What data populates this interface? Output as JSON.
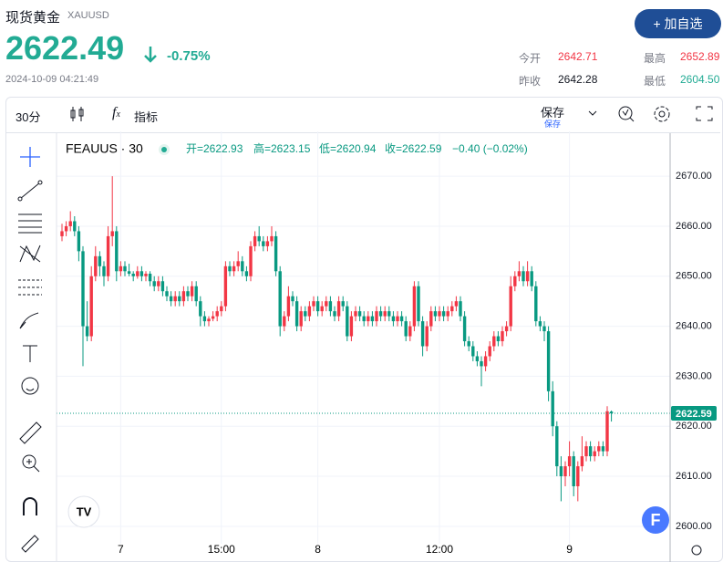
{
  "header": {
    "title": "现货黄金",
    "symbol": "XAUUSD",
    "price": "2622.49",
    "change": "-0.75%",
    "time": "2024-10-09 04:21:49",
    "button": "+ 加自选",
    "stats": [
      {
        "label": "今开",
        "value": "2642.71"
      },
      {
        "label": "最高",
        "value": "2652.89"
      },
      {
        "label": "昨收",
        "value": "2642.28"
      },
      {
        "label": "最低",
        "value": "2604.50"
      }
    ]
  },
  "toolbar": {
    "interval": "30分",
    "indicators": "指标",
    "save": "保存",
    "save_sub": "保存"
  },
  "chart_data": {
    "type": "candlestick",
    "legend": {
      "symbol": "FEAUUS · 30",
      "open": "开=2622.93",
      "high": "高=2623.15",
      "low": "低=2620.94",
      "close": "收=2622.59",
      "change": "−0.40 (−0.02%)"
    },
    "up_color": "#f23645",
    "down_color": "#089981",
    "grid": true,
    "ylim": [
      2597.6,
      2678.6
    ],
    "yticks": [
      {
        "value": 2600,
        "label": "2600.00"
      },
      {
        "value": 2610,
        "label": "2610.00"
      },
      {
        "value": 2620,
        "label": "2620.00"
      },
      {
        "value": 2630,
        "label": "2630.00"
      },
      {
        "value": 2640,
        "label": "2640.00"
      },
      {
        "value": 2650,
        "label": "2650.00"
      },
      {
        "value": 2660,
        "label": "2660.00"
      },
      {
        "value": 2670,
        "label": "2670.00"
      }
    ],
    "x": [
      null,
      null,
      null,
      null,
      null,
      null,
      null,
      null,
      null,
      null,
      null,
      null,
      null,
      null,
      "7",
      null,
      null,
      null,
      null,
      null,
      null,
      null,
      null,
      null,
      null,
      null,
      null,
      null,
      null,
      null,
      null,
      null,
      null,
      null,
      null,
      null,
      null,
      null,
      "15:00",
      null,
      null,
      null,
      null,
      null,
      null,
      null,
      null,
      null,
      null,
      null,
      null,
      null,
      null,
      null,
      null,
      null,
      null,
      null,
      null,
      null,
      null,
      "8",
      null,
      null,
      null,
      null,
      null,
      null,
      null,
      null,
      null,
      null,
      null,
      null,
      null,
      null,
      null,
      null,
      null,
      null,
      null,
      null,
      null,
      null,
      null,
      null,
      null,
      null,
      null,
      null,
      "12:00",
      null,
      null,
      null,
      null,
      null,
      null,
      null,
      null,
      null,
      null,
      null,
      null,
      null,
      null,
      null,
      null,
      null,
      null,
      null,
      null,
      null,
      null,
      null,
      null,
      null,
      null,
      null,
      null,
      null,
      null,
      "9",
      null,
      null,
      null,
      null,
      null,
      null,
      null,
      null,
      null,
      null
    ],
    "candles": [
      [
        2658,
        2660.5,
        2657,
        2659
      ],
      [
        2659,
        2661,
        2658,
        2660
      ],
      [
        2660,
        2663,
        2659,
        2661
      ],
      [
        2661,
        2662,
        2658,
        2659
      ],
      [
        2659,
        2660,
        2653,
        2655
      ],
      [
        2655,
        2656,
        2632,
        2640
      ],
      [
        2640,
        2645,
        2637,
        2638
      ],
      [
        2638,
        2652,
        2637,
        2650
      ],
      [
        2650,
        2656,
        2649,
        2654
      ],
      [
        2654,
        2655,
        2650,
        2652
      ],
      [
        2652,
        2653,
        2648,
        2650
      ],
      [
        2650,
        2660,
        2649,
        2658
      ],
      [
        2658,
        2670,
        2656,
        2659
      ],
      [
        2659,
        2660,
        2649,
        2651
      ],
      [
        2651,
        2653,
        2650,
        2652
      ],
      [
        2652,
        2653,
        2650,
        2651
      ],
      [
        2651,
        2652.5,
        2650,
        2650.5
      ],
      [
        2650.5,
        2651,
        2649,
        2650
      ],
      [
        2650,
        2652,
        2649.5,
        2651
      ],
      [
        2651,
        2652,
        2649,
        2650
      ],
      [
        2650,
        2651,
        2649,
        2650.5
      ],
      [
        2650.5,
        2651,
        2648,
        2649
      ],
      [
        2649,
        2650,
        2647,
        2648
      ],
      [
        2648,
        2650,
        2647,
        2649
      ],
      [
        2649,
        2650,
        2646,
        2647
      ],
      [
        2647,
        2648,
        2645,
        2646
      ],
      [
        2646,
        2647,
        2644,
        2645
      ],
      [
        2645,
        2647,
        2644,
        2646
      ],
      [
        2646,
        2647,
        2644,
        2645
      ],
      [
        2645,
        2648,
        2644,
        2647
      ],
      [
        2647,
        2648,
        2645,
        2646
      ],
      [
        2646,
        2649,
        2645,
        2648
      ],
      [
        2648,
        2649,
        2644,
        2645
      ],
      [
        2645,
        2646,
        2640,
        2642
      ],
      [
        2642,
        2643,
        2640,
        2641
      ],
      [
        2641,
        2642,
        2640,
        2641.5
      ],
      [
        2641.5,
        2643,
        2641,
        2642
      ],
      [
        2642,
        2644,
        2641,
        2643
      ],
      [
        2643,
        2645,
        2642,
        2644
      ],
      [
        2644,
        2653,
        2643,
        2652
      ],
      [
        2652,
        2653,
        2650,
        2651
      ],
      [
        2651,
        2653,
        2650,
        2652
      ],
      [
        2652,
        2655,
        2651,
        2653
      ],
      [
        2653,
        2654,
        2650,
        2651
      ],
      [
        2651,
        2652,
        2649,
        2650
      ],
      [
        2650,
        2657,
        2649,
        2656
      ],
      [
        2656,
        2659,
        2655,
        2658
      ],
      [
        2658,
        2660,
        2656,
        2657
      ],
      [
        2657,
        2658,
        2655,
        2656
      ],
      [
        2656,
        2658,
        2655,
        2657
      ],
      [
        2657,
        2660,
        2656,
        2658
      ],
      [
        2658,
        2659,
        2650,
        2651
      ],
      [
        2651,
        2652,
        2638,
        2640
      ],
      [
        2640,
        2643,
        2639,
        2642
      ],
      [
        2642,
        2648,
        2641,
        2646
      ],
      [
        2646,
        2647,
        2644,
        2645
      ],
      [
        2645,
        2646,
        2639,
        2640
      ],
      [
        2640,
        2644,
        2639,
        2643
      ],
      [
        2643,
        2644,
        2641,
        2642
      ],
      [
        2642,
        2645,
        2641,
        2644
      ],
      [
        2644,
        2646,
        2643,
        2645
      ],
      [
        2645,
        2646,
        2642,
        2643
      ],
      [
        2643,
        2645,
        2642,
        2644
      ],
      [
        2644,
        2646,
        2643,
        2645
      ],
      [
        2645,
        2646,
        2642,
        2643
      ],
      [
        2643,
        2644,
        2641,
        2642
      ],
      [
        2642,
        2646,
        2641,
        2645
      ],
      [
        2645,
        2646,
        2643,
        2644
      ],
      [
        2644,
        2645,
        2637,
        2638
      ],
      [
        2638,
        2643,
        2637,
        2642
      ],
      [
        2642,
        2644,
        2641,
        2643
      ],
      [
        2643,
        2644,
        2641,
        2642
      ],
      [
        2642,
        2643,
        2640,
        2641
      ],
      [
        2641,
        2643,
        2640,
        2642
      ],
      [
        2642,
        2643,
        2640,
        2641
      ],
      [
        2641,
        2644,
        2640,
        2643
      ],
      [
        2643,
        2644,
        2641,
        2642
      ],
      [
        2642,
        2644,
        2641,
        2643
      ],
      [
        2643,
        2644,
        2641,
        2642
      ],
      [
        2642,
        2643,
        2640,
        2641
      ],
      [
        2641,
        2643,
        2640,
        2642
      ],
      [
        2642,
        2643,
        2640,
        2641
      ],
      [
        2641,
        2642,
        2637,
        2638
      ],
      [
        2638,
        2641,
        2637,
        2640
      ],
      [
        2640,
        2649,
        2639,
        2648
      ],
      [
        2648,
        2649,
        2640,
        2641
      ],
      [
        2641,
        2642,
        2634,
        2636
      ],
      [
        2636,
        2641,
        2635,
        2640
      ],
      [
        2640,
        2644,
        2639,
        2643
      ],
      [
        2643,
        2644,
        2641,
        2642
      ],
      [
        2642,
        2644,
        2641,
        2643
      ],
      [
        2643,
        2644,
        2641,
        2642
      ],
      [
        2642,
        2644,
        2641,
        2643
      ],
      [
        2643,
        2645,
        2642,
        2644
      ],
      [
        2644,
        2646,
        2643,
        2645
      ],
      [
        2645,
        2646,
        2641,
        2642
      ],
      [
        2642,
        2643,
        2636,
        2637
      ],
      [
        2637,
        2638,
        2635,
        2636
      ],
      [
        2636,
        2637,
        2633,
        2634
      ],
      [
        2634,
        2635,
        2632,
        2633
      ],
      [
        2633,
        2634,
        2628,
        2632
      ],
      [
        2632,
        2635,
        2631,
        2634
      ],
      [
        2634,
        2637,
        2633,
        2636
      ],
      [
        2636,
        2639,
        2635,
        2638
      ],
      [
        2638,
        2639,
        2636,
        2637
      ],
      [
        2637,
        2640,
        2636,
        2639
      ],
      [
        2639,
        2641,
        2638,
        2640
      ],
      [
        2640,
        2650,
        2639,
        2648
      ],
      [
        2648,
        2651,
        2647,
        2650
      ],
      [
        2650,
        2653,
        2649,
        2651
      ],
      [
        2651,
        2652,
        2648,
        2649
      ],
      [
        2649,
        2653,
        2648,
        2651
      ],
      [
        2651,
        2652,
        2647,
        2648
      ],
      [
        2648,
        2649,
        2640,
        2641
      ],
      [
        2641,
        2642,
        2639,
        2640
      ],
      [
        2640,
        2641,
        2637,
        2639
      ],
      [
        2639,
        2640,
        2625,
        2627
      ],
      [
        2627,
        2629,
        2618,
        2620
      ],
      [
        2620,
        2621,
        2610,
        2612
      ],
      [
        2612,
        2614,
        2605,
        2610
      ],
      [
        2610,
        2613,
        2608,
        2612
      ],
      [
        2612,
        2617,
        2610,
        2614
      ],
      [
        2614,
        2615,
        2606,
        2608
      ],
      [
        2608,
        2613,
        2605,
        2612
      ],
      [
        2612,
        2618,
        2611,
        2614
      ],
      [
        2614,
        2617,
        2613,
        2616
      ],
      [
        2616,
        2617,
        2613,
        2614
      ],
      [
        2614,
        2616,
        2613,
        2615
      ],
      [
        2615,
        2617,
        2614,
        2616
      ],
      [
        2616,
        2617,
        2614,
        2615
      ],
      [
        2615,
        2624,
        2614,
        2623
      ],
      [
        2622.93,
        2623.15,
        2620.94,
        2622.59
      ]
    ]
  }
}
